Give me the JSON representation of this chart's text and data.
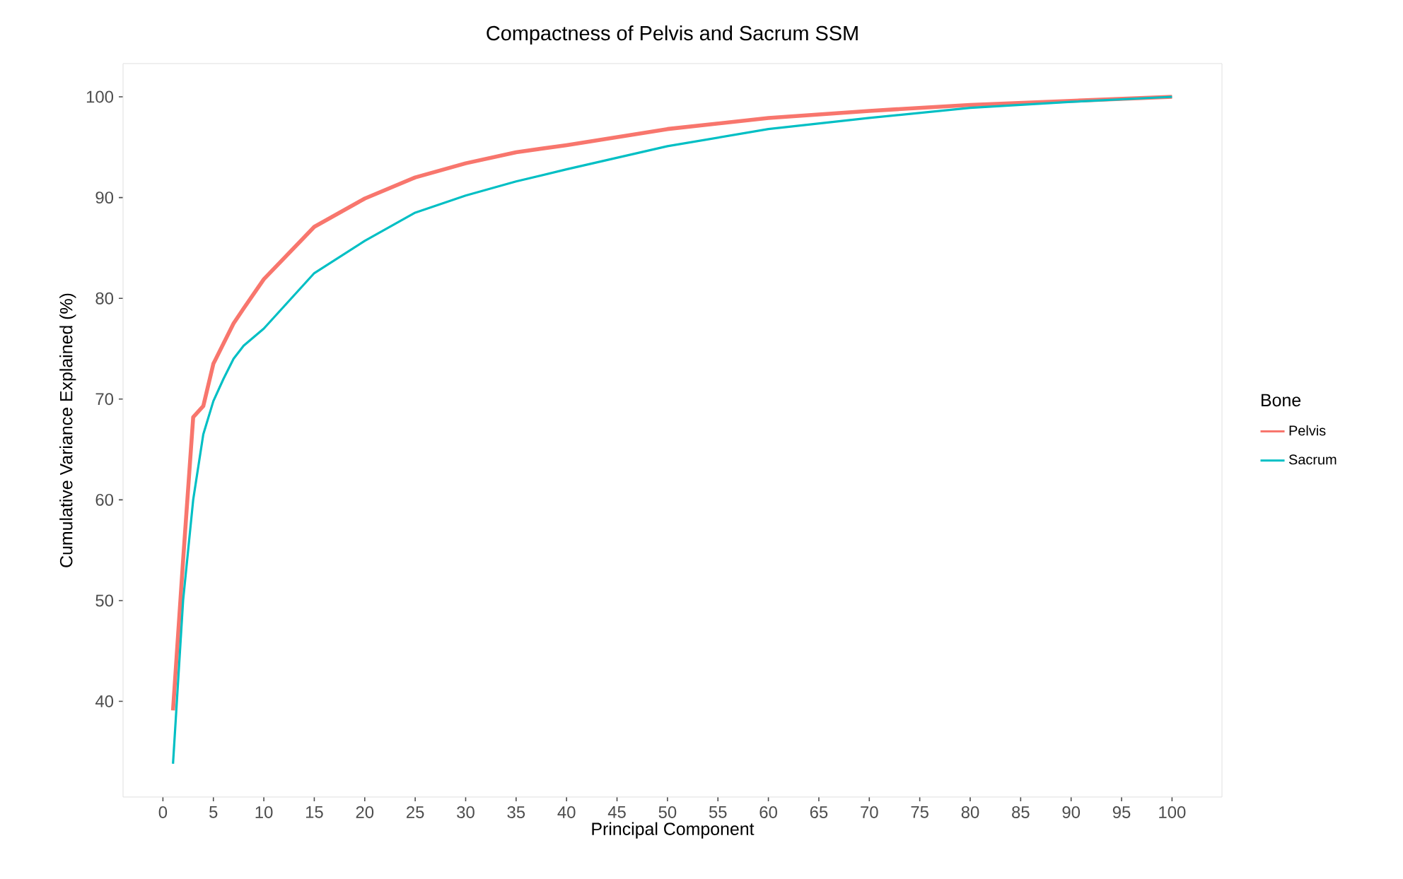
{
  "chart_data": {
    "type": "line",
    "title": "Compactness of Pelvis and Sacrum SSM",
    "xlabel": "Principal Component",
    "ylabel": "Cumulative Variance Explained (%)",
    "legend_title": "Bone",
    "xlim": [
      -3.95,
      104.95
    ],
    "ylim": [
      30.5,
      103.3
    ],
    "xticks": [
      0,
      5,
      10,
      15,
      20,
      25,
      30,
      35,
      40,
      45,
      50,
      55,
      60,
      65,
      70,
      75,
      80,
      85,
      90,
      95,
      100
    ],
    "yticks": [
      40,
      50,
      60,
      70,
      80,
      90,
      100
    ],
    "grid": false,
    "legend": "right",
    "marker": "none",
    "line_style": "solid",
    "series": [
      {
        "name": "Pelvis",
        "color": "#f8766d",
        "x": [
          1,
          2,
          3,
          4,
          5,
          6,
          7,
          8,
          10,
          15,
          20,
          25,
          30,
          35,
          40,
          50,
          60,
          70,
          80,
          90,
          100
        ],
        "values": [
          39.1,
          54,
          68.2,
          69.3,
          73.5,
          75.5,
          77.5,
          79,
          81.9,
          87.1,
          89.9,
          92,
          93.4,
          94.5,
          95.2,
          96.8,
          97.9,
          98.6,
          99.2,
          99.6,
          100
        ]
      },
      {
        "name": "Sacrum",
        "color": "#00bfc4",
        "x": [
          1,
          2,
          3,
          4,
          5,
          6,
          7,
          8,
          10,
          15,
          20,
          25,
          30,
          35,
          40,
          50,
          60,
          70,
          80,
          90,
          100
        ],
        "values": [
          33.8,
          50,
          60,
          66.5,
          69.8,
          72,
          74,
          75.3,
          77,
          82.5,
          85.7,
          88.5,
          90.2,
          91.6,
          92.8,
          95.1,
          96.8,
          97.9,
          98.9,
          99.5,
          100
        ]
      }
    ]
  }
}
